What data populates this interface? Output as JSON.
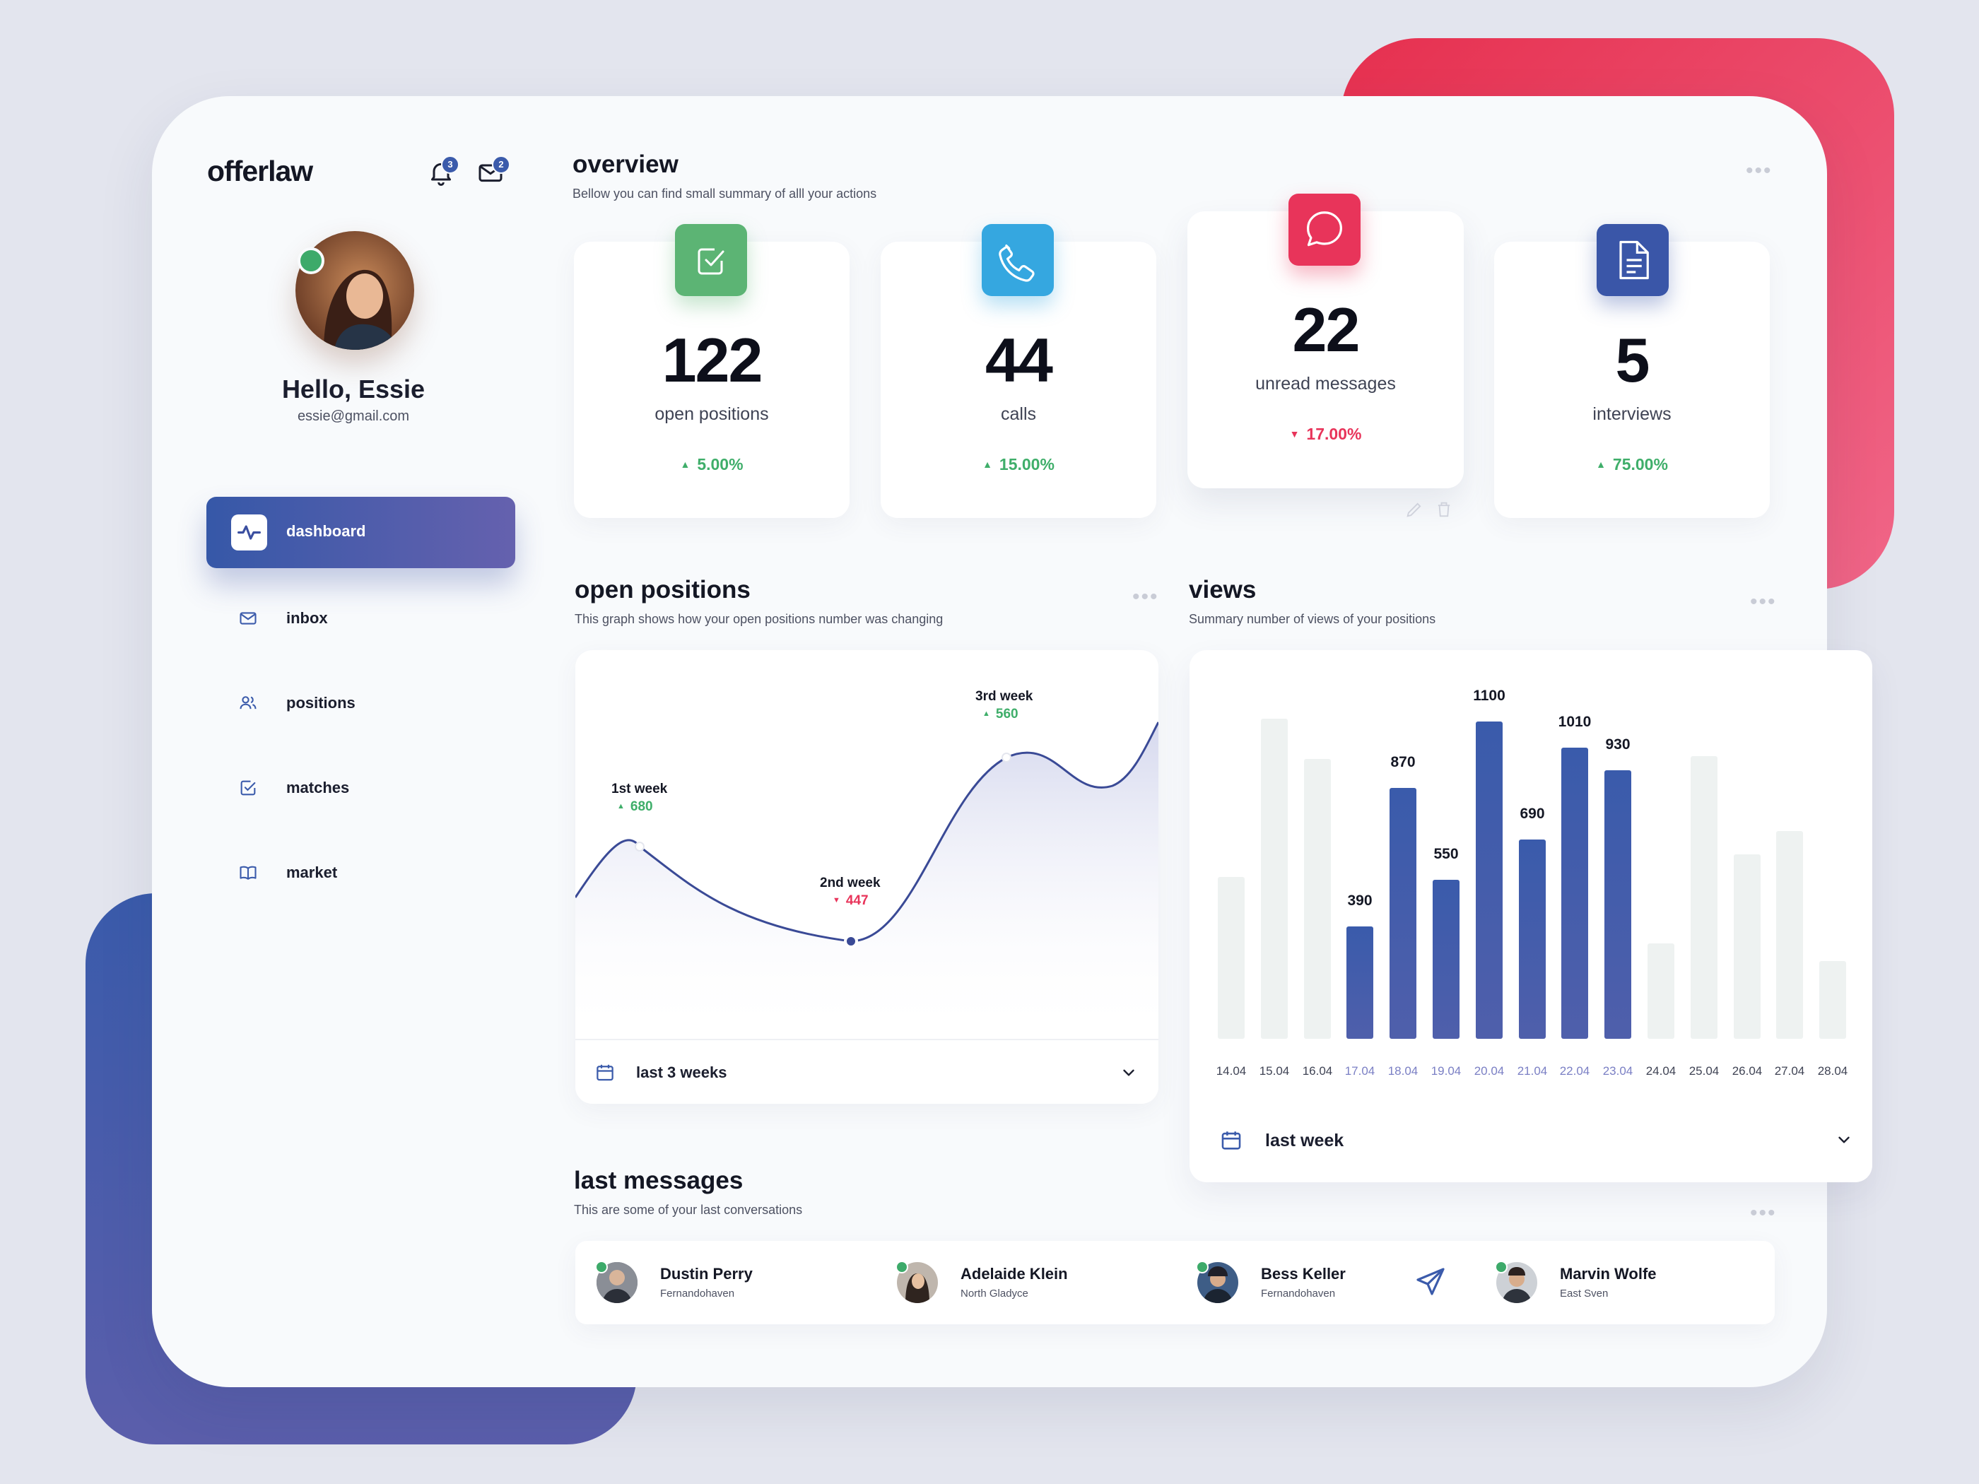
{
  "brand": {
    "name": "offerlaw"
  },
  "header": {
    "notifications_count": "3",
    "mail_count": "2"
  },
  "user": {
    "greeting": "Hello, Essie",
    "email": "essie@gmail.com"
  },
  "sidebar": {
    "items": [
      {
        "label": "dashboard",
        "icon": "pulse-icon",
        "active": true
      },
      {
        "label": "inbox",
        "icon": "mail-icon"
      },
      {
        "label": "positions",
        "icon": "users-icon"
      },
      {
        "label": "matches",
        "icon": "check-square-icon"
      },
      {
        "label": "market",
        "icon": "book-icon"
      }
    ]
  },
  "overview": {
    "title": "overview",
    "subtitle": "Bellow you can find small summary of alll your actions",
    "stats": [
      {
        "value": "122",
        "label": "open positions",
        "change": "5.00%",
        "direction": "up",
        "color": "#5cb474",
        "icon": "check-square-icon"
      },
      {
        "value": "44",
        "label": "calls",
        "change": "15.00%",
        "direction": "up",
        "color": "#35a7e0",
        "icon": "phone-icon"
      },
      {
        "value": "22",
        "label": "unread messages",
        "change": "17.00%",
        "direction": "down",
        "color": "#e8345a",
        "icon": "chat-bubble-icon"
      },
      {
        "value": "5",
        "label": "interviews",
        "change": "75.00%",
        "direction": "up",
        "color": "#3a56a8",
        "icon": "document-icon"
      }
    ]
  },
  "open_positions": {
    "title": "open positions",
    "subtitle": "This graph shows how your open positions number was changing",
    "points": [
      {
        "label": "1st week",
        "value": "680",
        "direction": "up"
      },
      {
        "label": "2nd week",
        "value": "447",
        "direction": "down"
      },
      {
        "label": "3rd week",
        "value": "560",
        "direction": "up"
      }
    ],
    "filter": "last 3 weeks"
  },
  "views": {
    "title": "views",
    "subtitle": "Summary number of views of your positions",
    "filter": "last week",
    "chart_data": {
      "type": "bar",
      "title": "views",
      "categories": [
        "14.04",
        "15.04",
        "16.04",
        "17.04",
        "18.04",
        "19.04",
        "20.04",
        "21.04",
        "22.04",
        "23.04",
        "24.04",
        "25.04",
        "26.04",
        "27.04",
        "28.04"
      ],
      "values": [
        560,
        1110,
        970,
        390,
        870,
        550,
        1100,
        690,
        1010,
        930,
        330,
        980,
        640,
        720,
        270
      ],
      "highlighted": [
        false,
        false,
        false,
        true,
        true,
        true,
        true,
        true,
        true,
        true,
        false,
        false,
        false,
        false,
        false
      ],
      "labels": [
        "",
        "",
        "",
        "390",
        "870",
        "550",
        "1100",
        "690",
        "1010",
        "930",
        "",
        "",
        "",
        "",
        ""
      ],
      "ylim": [
        0,
        1200
      ]
    }
  },
  "messages": {
    "title": "last messages",
    "subtitle": "This are some of your last conversations",
    "contacts": [
      {
        "name": "Dustin Perry",
        "location": "Fernandohaven"
      },
      {
        "name": "Adelaide Klein",
        "location": "North Gladyce"
      },
      {
        "name": "Bess Keller",
        "location": "Fernandohaven"
      },
      {
        "name": "Marvin Wolfe",
        "location": "East Sven"
      }
    ]
  }
}
